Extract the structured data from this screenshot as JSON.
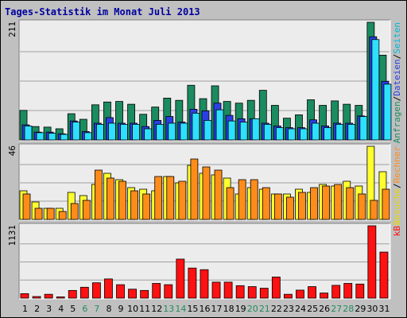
{
  "chart_data": {
    "type": "bar",
    "title": "Tages-Statistik im Monat Juli 2013",
    "categories": [
      "1",
      "2",
      "3",
      "4",
      "5",
      "6",
      "7",
      "8",
      "9",
      "10",
      "11",
      "12",
      "13",
      "14",
      "15",
      "16",
      "17",
      "18",
      "19",
      "20",
      "21",
      "22",
      "23",
      "24",
      "25",
      "26",
      "27",
      "28",
      "29",
      "30",
      "31"
    ],
    "weekend_days": [
      "6",
      "7",
      "13",
      "14",
      "20",
      "21",
      "27",
      "28"
    ],
    "colors": {
      "background": "#c0c0c0",
      "panel": "#ececec",
      "title": "#0000a0",
      "weekday_tick": "#000000",
      "weekend_tick": "#248b5f",
      "anfragen": "#1b8b60",
      "dateien": "#2a3fe3",
      "seiten": "#2de0ff",
      "besuche": "#ffff30",
      "rechner": "#ff8c1a",
      "kb": "#ff1111"
    },
    "panels": [
      {
        "id": "requests",
        "ymax_label": "211",
        "ylim": [
          0,
          211
        ],
        "legend": [
          {
            "text": "Anfragen",
            "color": "#1b8b60"
          },
          {
            "text": "/",
            "color": "#000000"
          },
          {
            "text": "Dateien",
            "color": "#2a3fe3"
          },
          {
            "text": "/",
            "color": "#000000"
          },
          {
            "text": "Seiten",
            "color": "#00b8d8"
          }
        ],
        "series": [
          {
            "name": "Anfragen",
            "color": "#1b8b60",
            "values": [
              53,
              24,
              23,
              20,
              47,
              37,
              63,
              68,
              69,
              64,
              46,
              59,
              75,
              71,
              98,
              74,
              97,
              69,
              66,
              71,
              89,
              62,
              39,
              45,
              72,
              62,
              70,
              64,
              62,
              211,
              152
            ]
          },
          {
            "name": "Dateien",
            "color": "#2a3fe3",
            "values": [
              27,
              14,
              14,
              11,
              34,
              15,
              30,
              40,
              30,
              30,
              24,
              35,
              42,
              32,
              55,
              52,
              66,
              44,
              38,
              38,
              30,
              25,
              22,
              22,
              36,
              25,
              30,
              30,
              43,
              185,
              105
            ]
          },
          {
            "name": "Seiten",
            "color": "#2de0ff",
            "values": [
              25,
              13,
              12,
              10,
              32,
              13,
              28,
              30,
              28,
              28,
              20,
              28,
              30,
              30,
              48,
              35,
              54,
              34,
              32,
              38,
              28,
              22,
              20,
              20,
              30,
              22,
              28,
              28,
              42,
              180,
              100
            ]
          }
        ]
      },
      {
        "id": "visits",
        "ymax_label": "46",
        "ylim": [
          0,
          46
        ],
        "legend": [
          {
            "text": "Besuche",
            "color": "#e8d800"
          },
          {
            "text": "/",
            "color": "#000000"
          },
          {
            "text": "Rechner",
            "color": "#ff8c1a"
          }
        ],
        "series": [
          {
            "name": "Besuche",
            "color": "#ffff30",
            "values": [
              18,
              11,
              7,
              7,
              17,
              15,
              22,
              29,
              25,
              20,
              19,
              18,
              27,
              23,
              34,
              29,
              28,
              26,
              16,
              20,
              19,
              16,
              16,
              19,
              17,
              22,
              21,
              24,
              21,
              46,
              30
            ]
          },
          {
            "name": "Rechner",
            "color": "#ff8c1a",
            "values": [
              16,
              7,
              7,
              5,
              10,
              12,
              31,
              26,
              24,
              18,
              16,
              27,
              27,
              24,
              38,
              33,
              31,
              20,
              25,
              25,
              20,
              16,
              14,
              17,
              20,
              21,
              22,
              20,
              16,
              12,
              19
            ]
          }
        ]
      },
      {
        "id": "kb",
        "ymax_label": "1131",
        "ylim": [
          0,
          1131
        ],
        "legend": [
          {
            "text": "kB",
            "color": "#ff1111"
          }
        ],
        "series": [
          {
            "name": "kB",
            "color": "#ff1111",
            "values": [
              70,
              25,
              60,
              20,
              120,
              170,
              240,
              300,
              210,
              140,
              120,
              230,
              210,
              610,
              470,
              445,
              250,
              250,
              195,
              180,
              155,
              330,
              60,
              125,
              180,
              80,
              200,
              230,
              220,
              1131,
              720
            ]
          }
        ]
      }
    ]
  }
}
